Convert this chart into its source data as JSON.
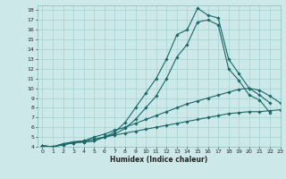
{
  "xlabel": "Humidex (Indice chaleur)",
  "background_color": "#cce8e8",
  "grid_color": "#99cccc",
  "line_color": "#1a6868",
  "xlim": [
    -0.5,
    23
  ],
  "ylim": [
    4,
    18.5
  ],
  "xticks": [
    0,
    1,
    2,
    3,
    4,
    5,
    6,
    7,
    8,
    9,
    10,
    11,
    12,
    13,
    14,
    15,
    16,
    17,
    18,
    19,
    20,
    21,
    22,
    23
  ],
  "yticks": [
    4,
    5,
    6,
    7,
    8,
    9,
    10,
    11,
    12,
    13,
    14,
    15,
    16,
    17,
    18
  ],
  "lines": [
    {
      "x": [
        0,
        1,
        2,
        3,
        4,
        5,
        6,
        7,
        8,
        9,
        10,
        11,
        12,
        13,
        14,
        15,
        16,
        17,
        18,
        19,
        20,
        21,
        22
      ],
      "y": [
        4.1,
        4.0,
        4.2,
        4.4,
        4.5,
        4.6,
        5.0,
        5.5,
        6.5,
        8.0,
        9.5,
        11.0,
        13.0,
        15.5,
        16.0,
        18.2,
        17.5,
        17.2,
        13.0,
        11.5,
        10.0,
        9.3,
        8.5
      ]
    },
    {
      "x": [
        0,
        1,
        2,
        3,
        4,
        5,
        6,
        7,
        8,
        9,
        10,
        11,
        12,
        13,
        14,
        15,
        16,
        17,
        18,
        19,
        20,
        21,
        22
      ],
      "y": [
        4.1,
        4.0,
        4.2,
        4.4,
        4.5,
        4.6,
        5.0,
        5.3,
        5.9,
        6.8,
        8.0,
        9.2,
        11.0,
        13.2,
        14.5,
        16.8,
        17.0,
        16.5,
        12.0,
        10.8,
        9.3,
        8.8,
        7.5
      ]
    },
    {
      "x": [
        0,
        1,
        2,
        3,
        4,
        5,
        6,
        7,
        8,
        9,
        10,
        11,
        12,
        13,
        14,
        15,
        16,
        17,
        18,
        19,
        20,
        21,
        22,
        23
      ],
      "y": [
        4.1,
        4.0,
        4.3,
        4.5,
        4.6,
        5.0,
        5.3,
        5.7,
        6.0,
        6.4,
        6.8,
        7.2,
        7.6,
        8.0,
        8.4,
        8.7,
        9.0,
        9.3,
        9.6,
        9.9,
        10.0,
        9.8,
        9.2,
        8.5
      ]
    },
    {
      "x": [
        0,
        1,
        2,
        3,
        4,
        5,
        6,
        7,
        8,
        9,
        10,
        11,
        12,
        13,
        14,
        15,
        16,
        17,
        18,
        19,
        20,
        21,
        22,
        23
      ],
      "y": [
        4.1,
        4.0,
        4.3,
        4.5,
        4.6,
        4.8,
        5.0,
        5.2,
        5.4,
        5.6,
        5.8,
        6.0,
        6.2,
        6.4,
        6.6,
        6.8,
        7.0,
        7.2,
        7.4,
        7.5,
        7.6,
        7.6,
        7.7,
        7.8
      ]
    }
  ]
}
